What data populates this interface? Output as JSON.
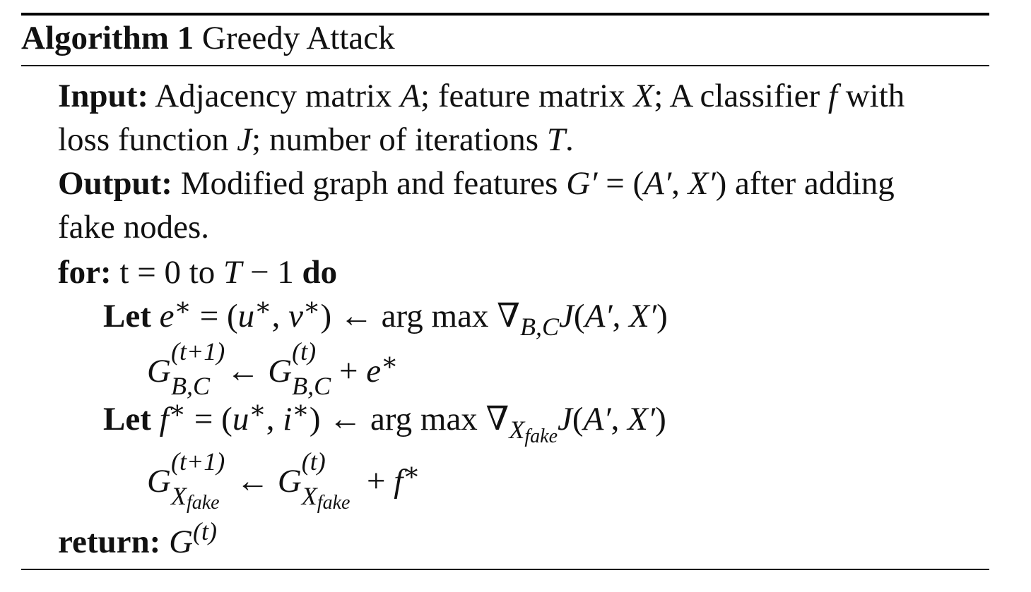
{
  "algorithm": {
    "label": "Algorithm 1",
    "name": "Greedy Attack"
  },
  "input": {
    "keyword": "Input:",
    "line1": "Adjacency matrix A; feature matrix X; A classifier f with",
    "line2": "loss function J; number of iterations T."
  },
  "output": {
    "keyword": "Output:",
    "line1_pre": "Modified graph and features",
    "line1_post": "after adding",
    "line2": "fake nodes."
  },
  "loop": {
    "keyword_for": "for:",
    "range": "t = 0 to",
    "keyword_do": "do"
  },
  "step1": {
    "keyword": "Let"
  },
  "step3": {
    "keyword": "Let"
  },
  "return_stmt": {
    "keyword": "return:"
  }
}
